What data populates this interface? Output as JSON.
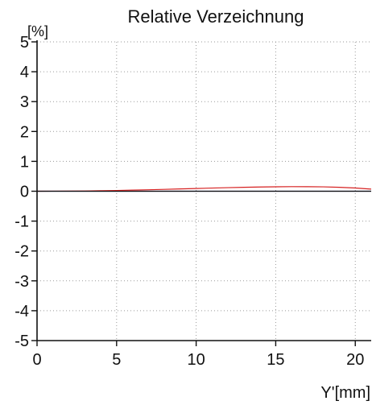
{
  "chart_data": {
    "type": "line",
    "title": "Relative Verzeichnung",
    "ylabel": "[%]",
    "xlabel": "Y'[mm]",
    "xlim": [
      0,
      21
    ],
    "ylim": [
      -5,
      5
    ],
    "x_ticks": [
      0,
      5,
      10,
      15,
      20
    ],
    "y_ticks": [
      5,
      4,
      3,
      2,
      1,
      0,
      -1,
      -2,
      -3,
      -4,
      -5
    ],
    "grid": true,
    "series": [
      {
        "color": "#d62020",
        "x": [
          0,
          1,
          2,
          3,
          4,
          5,
          6,
          7,
          8,
          9,
          10,
          11,
          12,
          13,
          14,
          15,
          16,
          17,
          18,
          19,
          20,
          21
        ],
        "y": [
          0,
          0.001,
          0.004,
          0.009,
          0.016,
          0.025,
          0.036,
          0.049,
          0.062,
          0.077,
          0.092,
          0.106,
          0.12,
          0.132,
          0.142,
          0.149,
          0.153,
          0.152,
          0.146,
          0.132,
          0.107,
          0.07
        ]
      },
      {
        "color": "#3a3a8a",
        "x": [
          0,
          21
        ],
        "y": [
          0,
          0
        ]
      }
    ]
  },
  "colors": {
    "axis": "#111111",
    "grid": "#9a9a9a"
  }
}
